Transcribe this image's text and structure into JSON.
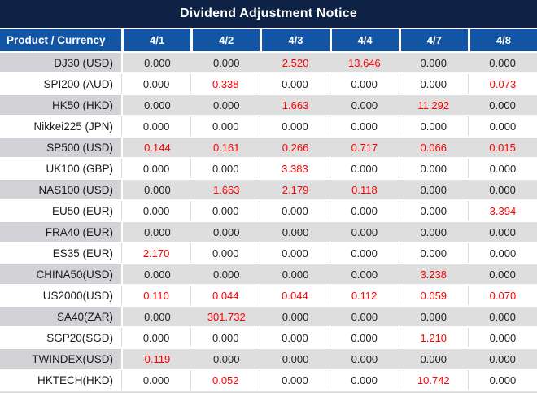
{
  "title": "Dividend Adjustment Notice",
  "table": {
    "product_header": "Product / Currency",
    "date_headers": [
      "4/1",
      "4/2",
      "4/3",
      "4/4",
      "4/7",
      "4/8"
    ],
    "rows": [
      {
        "product": "DJ30 (USD)",
        "values": [
          "0.000",
          "0.000",
          "2.520",
          "13.646",
          "0.000",
          "0.000"
        ]
      },
      {
        "product": "SPI200 (AUD)",
        "values": [
          "0.000",
          "0.338",
          "0.000",
          "0.000",
          "0.000",
          "0.073"
        ]
      },
      {
        "product": "HK50 (HKD)",
        "values": [
          "0.000",
          "0.000",
          "1.663",
          "0.000",
          "11.292",
          "0.000"
        ]
      },
      {
        "product": "Nikkei225 (JPN)",
        "values": [
          "0.000",
          "0.000",
          "0.000",
          "0.000",
          "0.000",
          "0.000"
        ]
      },
      {
        "product": "SP500 (USD)",
        "values": [
          "0.144",
          "0.161",
          "0.266",
          "0.717",
          "0.066",
          "0.015"
        ]
      },
      {
        "product": "UK100 (GBP)",
        "values": [
          "0.000",
          "0.000",
          "3.383",
          "0.000",
          "0.000",
          "0.000"
        ]
      },
      {
        "product": "NAS100 (USD)",
        "values": [
          "0.000",
          "1.663",
          "2.179",
          "0.118",
          "0.000",
          "0.000"
        ]
      },
      {
        "product": "EU50 (EUR)",
        "values": [
          "0.000",
          "0.000",
          "0.000",
          "0.000",
          "0.000",
          "3.394"
        ]
      },
      {
        "product": "FRA40 (EUR)",
        "values": [
          "0.000",
          "0.000",
          "0.000",
          "0.000",
          "0.000",
          "0.000"
        ]
      },
      {
        "product": "ES35 (EUR)",
        "values": [
          "2.170",
          "0.000",
          "0.000",
          "0.000",
          "0.000",
          "0.000"
        ]
      },
      {
        "product": "CHINA50(USD)",
        "values": [
          "0.000",
          "0.000",
          "0.000",
          "0.000",
          "3.238",
          "0.000"
        ]
      },
      {
        "product": "US2000(USD)",
        "values": [
          "0.110",
          "0.044",
          "0.044",
          "0.112",
          "0.059",
          "0.070"
        ]
      },
      {
        "product": "SA40(ZAR)",
        "values": [
          "0.000",
          "301.732",
          "0.000",
          "0.000",
          "0.000",
          "0.000"
        ]
      },
      {
        "product": "SGP20(SGD)",
        "values": [
          "0.000",
          "0.000",
          "0.000",
          "0.000",
          "1.210",
          "0.000"
        ]
      },
      {
        "product": "TWINDEX(USD)",
        "values": [
          "0.119",
          "0.000",
          "0.000",
          "0.000",
          "0.000",
          "0.000"
        ]
      },
      {
        "product": "HKTECH(HKD)",
        "values": [
          "0.000",
          "0.052",
          "0.000",
          "0.000",
          "10.742",
          "0.000"
        ]
      }
    ]
  },
  "colors": {
    "title_bg": "#0e2245",
    "header_bg": "#1155a4",
    "row_gray_product": "#d3d3d7",
    "row_gray_value": "#dedede",
    "zero_text": "#1f1f1f",
    "nonzero_text": "#fb0000"
  }
}
